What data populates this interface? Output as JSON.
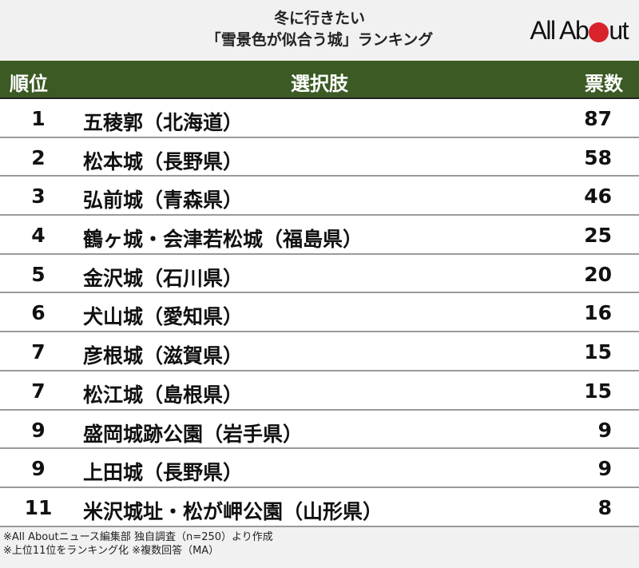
{
  "title": {
    "line1": "冬に行きたい",
    "line2": "「雪景色が似合う城」ランキング"
  },
  "logo": {
    "text_before": "All Ab",
    "text_after": "ut",
    "dot_color": "#d8232a"
  },
  "colors": {
    "header_bg": "#3b5a24",
    "header_text": "#ffffff",
    "row_bg": "#ffffff",
    "divider": "#9a9a9a",
    "page_bg": "#f1f1f1"
  },
  "table": {
    "headers": {
      "rank": "順位",
      "choice": "選択肢",
      "votes": "票数"
    },
    "rows": [
      {
        "rank": "1",
        "choice": "五稜郭（北海道）",
        "votes": "87"
      },
      {
        "rank": "2",
        "choice": "松本城（長野県）",
        "votes": "58"
      },
      {
        "rank": "3",
        "choice": "弘前城（青森県）",
        "votes": "46"
      },
      {
        "rank": "4",
        "choice": "鶴ヶ城・会津若松城（福島県）",
        "votes": "25"
      },
      {
        "rank": "5",
        "choice": "金沢城（石川県）",
        "votes": "20"
      },
      {
        "rank": "6",
        "choice": "犬山城（愛知県）",
        "votes": "16"
      },
      {
        "rank": "7",
        "choice": "彦根城（滋賀県）",
        "votes": "15"
      },
      {
        "rank": "7",
        "choice": "松江城（島根県）",
        "votes": "15"
      },
      {
        "rank": "9",
        "choice": "盛岡城跡公園（岩手県）",
        "votes": "9"
      },
      {
        "rank": "9",
        "choice": "上田城（長野県）",
        "votes": "9"
      },
      {
        "rank": "11",
        "choice": "米沢城址・松が岬公園（山形県）",
        "votes": "8"
      }
    ]
  },
  "notes": {
    "line1": "※All Aboutニュース編集部 独自調査（n=250）より作成",
    "line2": "※上位11位をランキング化 ※複数回答（MA）"
  },
  "chart_data": {
    "type": "table",
    "title": "冬に行きたい「雪景色が似合う城」ランキング",
    "columns": [
      "順位",
      "選択肢",
      "票数"
    ],
    "categories": [
      "五稜郭（北海道）",
      "松本城（長野県）",
      "弘前城（青森県）",
      "鶴ヶ城・会津若松城（福島県）",
      "金沢城（石川県）",
      "犬山城（愛知県）",
      "彦根城（滋賀県）",
      "松江城（島根県）",
      "盛岡城跡公園（岩手県）",
      "上田城（長野県）",
      "米沢城址・松が岬公園（山形県）"
    ],
    "ranks": [
      1,
      2,
      3,
      4,
      5,
      6,
      7,
      7,
      9,
      9,
      11
    ],
    "values": [
      87,
      58,
      46,
      25,
      20,
      16,
      15,
      15,
      9,
      9,
      8
    ],
    "notes": [
      "※All Aboutニュース編集部 独自調査（n=250）より作成",
      "※上位11位をランキング化 ※複数回答（MA）"
    ]
  }
}
